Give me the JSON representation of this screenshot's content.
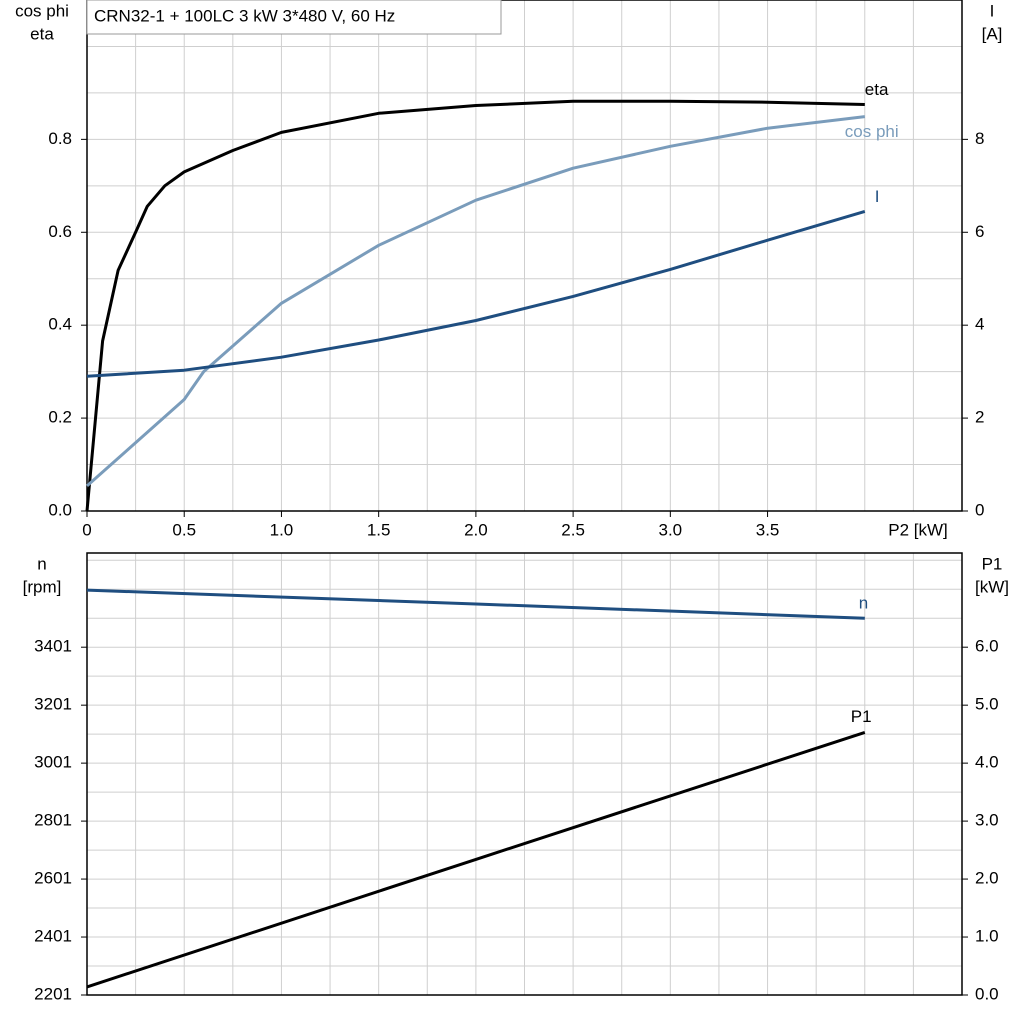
{
  "chart_data": [
    {
      "type": "line",
      "title": "CRN32-1 + 100LC   3 kW   3*480 V, 60 Hz",
      "ylabel": [
        "cos phi",
        "eta"
      ],
      "y2label": [
        "I",
        "[A]"
      ],
      "xlabel": "P2 [kW]",
      "xlim": [
        0,
        4.5
      ],
      "xticks": [
        {
          "value": 0,
          "label": "0"
        },
        0.5,
        {
          "value": 1,
          "label": "1.0"
        },
        1.5,
        {
          "value": 2,
          "label": "2.0"
        },
        2.5,
        {
          "value": 3,
          "label": "3.0"
        },
        3.5
      ],
      "ylim": [
        0,
        1.1
      ],
      "yticks": [
        {
          "value": 0,
          "label": "0.0"
        },
        0.2,
        0.4,
        0.6,
        0.8
      ],
      "y2lim": [
        0,
        11
      ],
      "y2ticks": [
        0,
        2,
        4,
        6,
        8
      ],
      "grid": true,
      "grid_x_step": 0.25,
      "grid_y_step": 0.1,
      "series": [
        {
          "name": "eta",
          "color": "#000000",
          "x": [
            0,
            0.08,
            0.16,
            0.25,
            0.31,
            0.4,
            0.5,
            0.75,
            1.0,
            1.5,
            2.0,
            2.5,
            3.0,
            3.5,
            4.0
          ],
          "values": [
            0,
            0.366,
            0.518,
            0.6,
            0.656,
            0.7,
            0.73,
            0.776,
            0.815,
            0.856,
            0.873,
            0.882,
            0.882,
            0.88,
            0.875
          ]
        },
        {
          "name": "cos phi",
          "color": "#7a9cbb",
          "x": [
            0,
            0.5,
            0.6,
            1.0,
            1.5,
            2.0,
            2.5,
            3.0,
            3.5,
            4.0
          ],
          "values": [
            0.054,
            0.24,
            0.3,
            0.447,
            0.572,
            0.669,
            0.738,
            0.785,
            0.824,
            0.849
          ]
        },
        {
          "name": "I",
          "color": "#1f4e80",
          "axis": "y2",
          "x": [
            0,
            0.5,
            1.0,
            1.5,
            2.0,
            2.5,
            3.0,
            3.5,
            4.0
          ],
          "values": [
            2.9,
            3.03,
            3.31,
            3.68,
            4.1,
            4.62,
            5.2,
            5.83,
            6.45
          ]
        }
      ]
    },
    {
      "type": "line",
      "ylabel": [
        "n",
        "[rpm]"
      ],
      "y2label": [
        "P1",
        "[kW]"
      ],
      "xlim": [
        0,
        4.5
      ],
      "ylim": [
        2201,
        3726
      ],
      "yticks": [
        2201,
        2401,
        2601,
        2801,
        3001,
        3201,
        3401
      ],
      "y2lim": [
        0,
        7.625
      ],
      "y2ticks": [
        {
          "value": 0,
          "label": "0.0"
        },
        {
          "value": 1,
          "label": "1.0"
        },
        {
          "value": 2,
          "label": "2.0"
        },
        {
          "value": 3,
          "label": "3.0"
        },
        {
          "value": 4,
          "label": "4.0"
        },
        {
          "value": 5,
          "label": "5.0"
        },
        {
          "value": 6,
          "label": "6.0"
        }
      ],
      "grid": true,
      "grid_x_step": 0.25,
      "grid_y_step": 100,
      "series": [
        {
          "name": "n",
          "color": "#1f4e80",
          "x": [
            0,
            2.0,
            4.0
          ],
          "values": [
            3598,
            3550,
            3501
          ]
        },
        {
          "name": "P1",
          "color": "#000000",
          "axis": "y2",
          "x": [
            0,
            2.0,
            4.0
          ],
          "values": [
            0.14,
            2.34,
            4.53
          ]
        }
      ]
    }
  ]
}
